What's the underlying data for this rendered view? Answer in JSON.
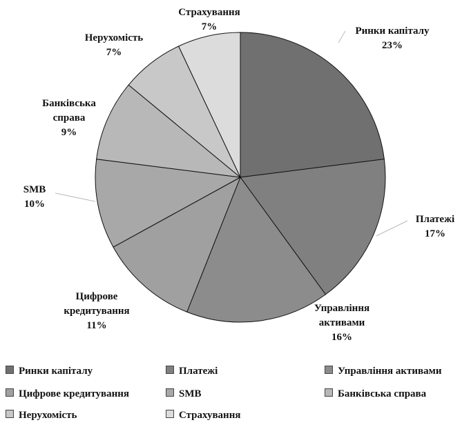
{
  "chart_data": {
    "type": "pie",
    "categories": [
      "Ринки капіталу",
      "Платежі",
      "Управління активами",
      "Цифрове кредитування",
      "SMB",
      "Банківська справа",
      "Нерухомість",
      "Страхування"
    ],
    "values": [
      23,
      17,
      16,
      11,
      10,
      9,
      7,
      7
    ],
    "value_labels": [
      "23%",
      "17%",
      "16%",
      "11%",
      "10%",
      "9%",
      "7%",
      "7%"
    ],
    "colors": [
      "#707070",
      "#808080",
      "#8c8c8c",
      "#a0a0a0",
      "#a8a8a8",
      "#b8b8b8",
      "#c8c8c8",
      "#dcdcdc"
    ],
    "legend": "bottom"
  }
}
